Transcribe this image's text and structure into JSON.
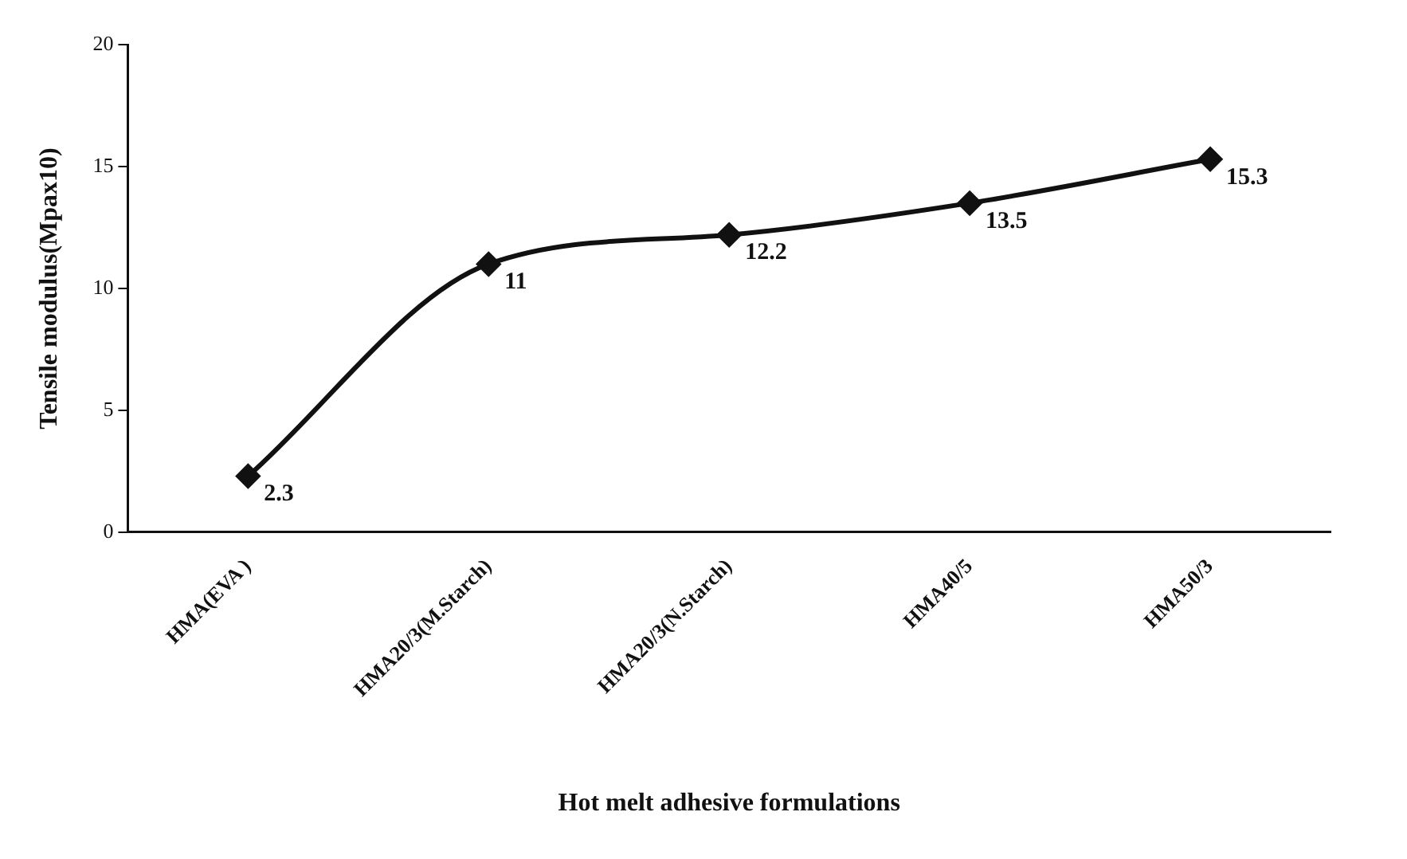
{
  "chart_data": {
    "type": "line",
    "xlabel": "Hot melt adhesive formulations",
    "ylabel": "Tensile modulus(Mpax10)",
    "categories": [
      "HMA(EVA )",
      "HMA20/3(M.Starch)",
      "HMA20/3(N.Starch)",
      "HMA40/5",
      "HMA50/3"
    ],
    "series": [
      {
        "color": "#111111",
        "values": [
          2.3,
          11,
          12.2,
          13.5,
          15.3
        ]
      }
    ],
    "ylim": [
      0,
      20
    ],
    "yticks": [
      0,
      5,
      10,
      15,
      20
    ],
    "grid": false,
    "legend": false,
    "marker": "diamond",
    "line_style": "solid",
    "data_labels": true
  }
}
